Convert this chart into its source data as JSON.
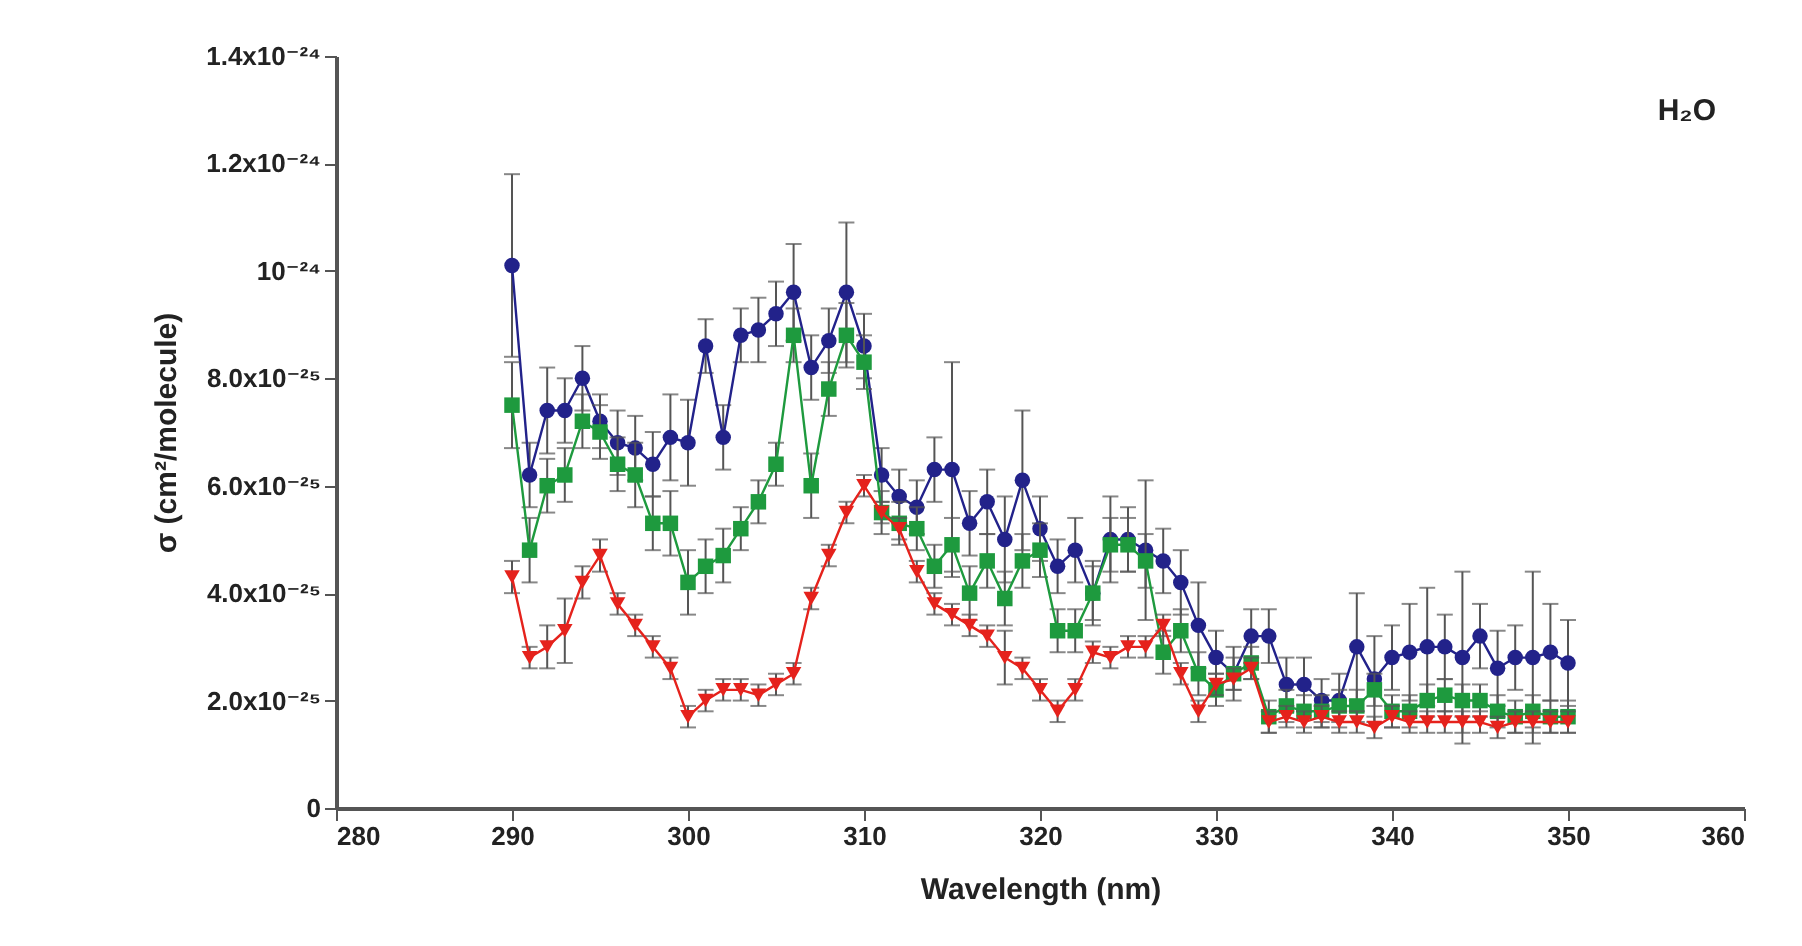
{
  "chart_data": {
    "type": "line",
    "xlabel": "Wavelength (nm)",
    "ylabel": "σ (cm²/molecule)",
    "annotations": [
      "H₂O"
    ],
    "x": [
      290,
      291,
      292,
      293,
      294,
      295,
      296,
      297,
      298,
      299,
      300,
      301,
      302,
      303,
      304,
      305,
      306,
      307,
      308,
      309,
      310,
      311,
      312,
      313,
      314,
      315,
      316,
      317,
      318,
      319,
      320,
      321,
      322,
      323,
      324,
      325,
      326,
      327,
      328,
      329,
      330,
      331,
      332,
      333,
      334,
      335,
      336,
      337,
      338,
      339,
      340,
      341,
      342,
      343,
      344,
      345,
      346,
      347,
      348,
      349,
      350
    ],
    "xlim": [
      280,
      360
    ],
    "xticks": [
      280,
      290,
      300,
      310,
      320,
      330,
      340,
      350,
      360
    ],
    "ylim": [
      0,
      1.4e-24
    ],
    "yticks": [
      0,
      {
        "value": 2e-25,
        "label": "2.0x10⁻²⁵"
      },
      {
        "value": 4e-25,
        "label": "4.0x10⁻²⁵"
      },
      {
        "value": 6e-25,
        "label": "6.0x10⁻²⁵"
      },
      {
        "value": 8e-25,
        "label": "8.0x10⁻²⁵"
      },
      {
        "value": 1e-24,
        "label": "10⁻²⁴"
      },
      {
        "value": 1.2e-24,
        "label": "1.2x10⁻²⁴"
      },
      {
        "value": 1.4e-24,
        "label": "1.4x10⁻²⁴"
      }
    ],
    "grid": false,
    "series": [
      {
        "color": "#22228a",
        "marker": "circle",
        "values": [
          1.01e-24,
          6.2e-25,
          7.4e-25,
          7.4e-25,
          8e-25,
          7.2e-25,
          6.8e-25,
          6.7e-25,
          6.4e-25,
          6.9e-25,
          6.8e-25,
          8.6e-25,
          6.9e-25,
          8.8e-25,
          8.9e-25,
          9.2e-25,
          9.6e-25,
          8.2e-25,
          8.7e-25,
          9.6e-25,
          8.6e-25,
          6.2e-25,
          5.8e-25,
          5.6e-25,
          6.3e-25,
          6.3e-25,
          5.3e-25,
          5.7e-25,
          5e-25,
          6.1e-25,
          5.2e-25,
          4.5e-25,
          4.8e-25,
          4e-25,
          5e-25,
          5e-25,
          4.8e-25,
          4.6e-25,
          4.2e-25,
          3.4e-25,
          2.8e-25,
          2.5e-25,
          3.2e-25,
          3.2e-25,
          2.3e-25,
          2.3e-25,
          2e-25,
          2e-25,
          3e-25,
          2.4e-25,
          2.8e-25,
          2.9e-25,
          3e-25,
          3e-25,
          2.8e-25,
          3.2e-25,
          2.6e-25,
          2.8e-25,
          2.8e-25,
          2.9e-25,
          2.7e-25
        ],
        "errors": [
          1.7e-25,
          6e-26,
          8e-26,
          6e-26,
          6e-26,
          5e-26,
          6e-26,
          6e-26,
          6e-26,
          8e-26,
          8e-26,
          5e-26,
          6e-26,
          5e-26,
          6e-26,
          6e-26,
          9e-26,
          6e-26,
          6e-26,
          1.3e-25,
          6e-26,
          5e-26,
          5e-26,
          5e-26,
          6e-26,
          2e-25,
          6e-26,
          6e-26,
          8e-26,
          1.3e-25,
          6e-26,
          5e-26,
          6e-26,
          6e-26,
          8e-26,
          6e-26,
          1.3e-25,
          6e-26,
          6e-26,
          8e-26,
          5e-26,
          5e-26,
          5e-26,
          5e-26,
          5e-26,
          5e-26,
          4e-26,
          5e-26,
          1e-25,
          8e-26,
          6e-26,
          9e-26,
          1.1e-25,
          6e-26,
          1.6e-25,
          6e-26,
          7e-26,
          6e-26,
          1.6e-25,
          9e-26,
          8e-26
        ]
      },
      {
        "color": "#1e9a3e",
        "marker": "square",
        "values": [
          7.5e-25,
          4.8e-25,
          6e-25,
          6.2e-25,
          7.2e-25,
          7e-25,
          6.4e-25,
          6.2e-25,
          5.3e-25,
          5.3e-25,
          4.2e-25,
          4.5e-25,
          4.7e-25,
          5.2e-25,
          5.7e-25,
          6.4e-25,
          8.8e-25,
          6e-25,
          7.8e-25,
          8.8e-25,
          8.3e-25,
          5.5e-25,
          5.3e-25,
          5.2e-25,
          4.5e-25,
          4.9e-25,
          4e-25,
          4.6e-25,
          3.9e-25,
          4.6e-25,
          4.8e-25,
          3.3e-25,
          3.3e-25,
          4e-25,
          4.9e-25,
          4.9e-25,
          4.6e-25,
          2.9e-25,
          3.3e-25,
          2.5e-25,
          2.2e-25,
          2.5e-25,
          2.7e-25,
          1.7e-25,
          1.9e-25,
          1.8e-25,
          1.8e-25,
          1.9e-25,
          1.9e-25,
          2.2e-25,
          1.8e-25,
          1.8e-25,
          2e-25,
          2.1e-25,
          2e-25,
          2e-25,
          1.8e-25,
          1.7e-25,
          1.8e-25,
          1.7e-25,
          1.7e-25
        ],
        "errors": [
          8e-26,
          6e-26,
          5e-26,
          5e-26,
          5e-26,
          5e-26,
          5e-26,
          6e-26,
          5e-26,
          6e-26,
          6e-26,
          5e-26,
          5e-26,
          4e-26,
          4e-26,
          4e-26,
          5e-26,
          6e-26,
          5e-26,
          6e-26,
          5e-26,
          4e-26,
          4e-26,
          4e-26,
          4e-26,
          5e-26,
          5e-26,
          5e-26,
          5e-26,
          5e-26,
          5e-26,
          4e-26,
          4e-26,
          5e-26,
          5e-26,
          5e-26,
          5e-26,
          4e-26,
          4e-26,
          4e-26,
          3e-26,
          3e-26,
          3e-26,
          3e-26,
          3e-26,
          3e-26,
          3e-26,
          3e-26,
          3e-26,
          3e-26,
          3e-26,
          3e-26,
          3e-26,
          3e-26,
          3e-26,
          3e-26,
          3e-26,
          3e-26,
          3e-26,
          3e-26,
          3e-26
        ]
      },
      {
        "color": "#e5221c",
        "marker": "triangle",
        "values": [
          4.3e-25,
          2.8e-25,
          3e-25,
          3.3e-25,
          4.2e-25,
          4.7e-25,
          3.8e-25,
          3.4e-25,
          3e-25,
          2.6e-25,
          1.7e-25,
          2e-25,
          2.2e-25,
          2.2e-25,
          2.1e-25,
          2.3e-25,
          2.5e-25,
          3.9e-25,
          4.7e-25,
          5.5e-25,
          6e-25,
          5.5e-25,
          5.2e-25,
          4.4e-25,
          3.8e-25,
          3.6e-25,
          3.4e-25,
          3.2e-25,
          2.8e-25,
          2.6e-25,
          2.2e-25,
          1.8e-25,
          2.2e-25,
          2.9e-25,
          2.8e-25,
          3e-25,
          3e-25,
          3.4e-25,
          2.5e-25,
          1.8e-25,
          2.3e-25,
          2.4e-25,
          2.6e-25,
          1.6e-25,
          1.7e-25,
          1.6e-25,
          1.7e-25,
          1.6e-25,
          1.6e-25,
          1.5e-25,
          1.7e-25,
          1.6e-25,
          1.6e-25,
          1.6e-25,
          1.6e-25,
          1.6e-25,
          1.5e-25,
          1.6e-25,
          1.6e-25,
          1.6e-25,
          1.6e-25
        ],
        "errors": [
          3e-26,
          2e-26,
          4e-26,
          6e-26,
          3e-26,
          3e-26,
          2e-26,
          2e-26,
          2e-26,
          2e-26,
          2e-26,
          2e-26,
          2e-26,
          2e-26,
          2e-26,
          2e-26,
          2e-26,
          2e-26,
          2e-26,
          2e-26,
          2e-26,
          2e-26,
          2e-26,
          2e-26,
          2e-26,
          2e-26,
          2e-26,
          2e-26,
          5e-26,
          2e-26,
          2e-26,
          2e-26,
          2e-26,
          2e-26,
          2e-26,
          2e-26,
          2e-26,
          2e-26,
          2e-26,
          2e-26,
          2e-26,
          2e-26,
          2e-26,
          2e-26,
          2e-26,
          2e-26,
          2e-26,
          2e-26,
          2e-26,
          2e-26,
          2e-26,
          2e-26,
          2e-26,
          2e-26,
          2e-26,
          2e-26,
          2e-26,
          2e-26,
          2e-26,
          2e-26,
          2e-26
        ]
      }
    ]
  }
}
